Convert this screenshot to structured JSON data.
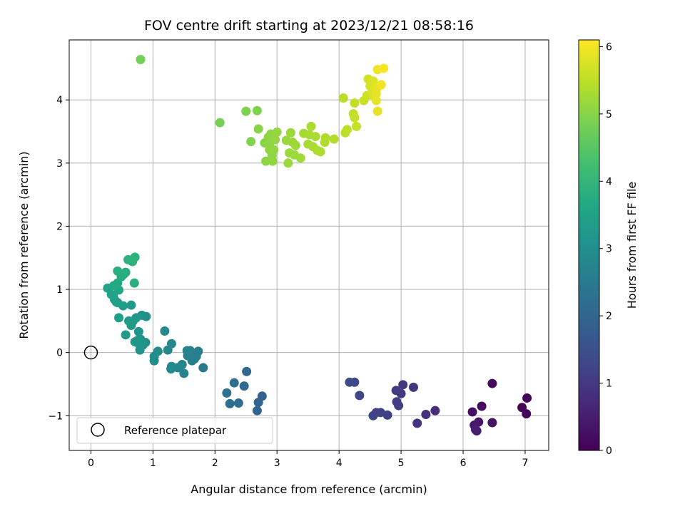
{
  "chart_data": {
    "type": "scatter",
    "title": "FOV centre drift starting at 2023/12/21 08:58:16",
    "xlabel": "Angular distance from reference (arcmin)",
    "ylabel": "Rotation from reference (arcmin)",
    "xlim": [
      -0.35,
      7.38
    ],
    "ylim": [
      -1.55,
      4.95
    ],
    "xticks": [
      "0",
      "1",
      "2",
      "3",
      "4",
      "5",
      "6",
      "7"
    ],
    "yticks": [
      "−1",
      "0",
      "1",
      "2",
      "3",
      "4"
    ],
    "grid": true,
    "legend": {
      "placement": "lower-left",
      "label": "Reference platepar"
    },
    "reference_point": {
      "x": 0,
      "y": 0
    },
    "colorbar": {
      "label": "Hours from first FF file",
      "range": [
        0,
        6.1
      ],
      "ticks": [
        "0",
        "1",
        "2",
        "3",
        "4",
        "5",
        "6"
      ],
      "colormap": "viridis"
    },
    "points": [
      {
        "x": 7.03,
        "y": -0.72,
        "t": 0.05
      },
      {
        "x": 6.95,
        "y": -0.87,
        "t": 0.08
      },
      {
        "x": 7.02,
        "y": -0.97,
        "t": 0.1
      },
      {
        "x": 6.47,
        "y": -0.49,
        "t": 0.15
      },
      {
        "x": 6.3,
        "y": -0.85,
        "t": 0.2
      },
      {
        "x": 6.15,
        "y": -0.94,
        "t": 0.25
      },
      {
        "x": 6.47,
        "y": -1.11,
        "t": 0.3
      },
      {
        "x": 6.25,
        "y": -1.1,
        "t": 0.35
      },
      {
        "x": 6.18,
        "y": -1.15,
        "t": 0.4
      },
      {
        "x": 6.22,
        "y": -1.24,
        "t": 0.45
      },
      {
        "x": 6.2,
        "y": -1.22,
        "t": 0.5
      },
      {
        "x": 5.55,
        "y": -0.92,
        "t": 0.8
      },
      {
        "x": 5.4,
        "y": -0.98,
        "t": 0.85
      },
      {
        "x": 5.26,
        "y": -1.12,
        "t": 0.9
      },
      {
        "x": 5.2,
        "y": -0.55,
        "t": 0.95
      },
      {
        "x": 5.03,
        "y": -0.51,
        "t": 1.0
      },
      {
        "x": 5.0,
        "y": -0.65,
        "t": 1.02
      },
      {
        "x": 4.92,
        "y": -0.6,
        "t": 1.05
      },
      {
        "x": 4.93,
        "y": -0.78,
        "t": 1.08
      },
      {
        "x": 4.96,
        "y": -0.84,
        "t": 1.1
      },
      {
        "x": 4.78,
        "y": -0.99,
        "t": 1.15
      },
      {
        "x": 4.67,
        "y": -0.95,
        "t": 1.18
      },
      {
        "x": 4.6,
        "y": -0.95,
        "t": 1.2
      },
      {
        "x": 4.55,
        "y": -1.0,
        "t": 1.25
      },
      {
        "x": 4.33,
        "y": -0.68,
        "t": 1.3
      },
      {
        "x": 4.25,
        "y": -0.47,
        "t": 1.35
      },
      {
        "x": 4.17,
        "y": -0.47,
        "t": 1.38
      },
      {
        "x": 2.76,
        "y": -0.69,
        "t": 1.9
      },
      {
        "x": 2.7,
        "y": -0.79,
        "t": 1.95
      },
      {
        "x": 2.68,
        "y": -0.92,
        "t": 2.0
      },
      {
        "x": 2.51,
        "y": -0.3,
        "t": 2.05
      },
      {
        "x": 2.47,
        "y": -0.53,
        "t": 2.1
      },
      {
        "x": 2.38,
        "y": -0.8,
        "t": 2.15
      },
      {
        "x": 2.31,
        "y": -0.48,
        "t": 2.2
      },
      {
        "x": 2.24,
        "y": -0.81,
        "t": 2.25
      },
      {
        "x": 2.19,
        "y": -0.64,
        "t": 2.3
      },
      {
        "x": 1.81,
        "y": -0.24,
        "t": 2.5
      },
      {
        "x": 1.73,
        "y": 0.02,
        "t": 2.55
      },
      {
        "x": 1.7,
        "y": -0.06,
        "t": 2.58
      },
      {
        "x": 1.67,
        "y": -0.1,
        "t": 2.6
      },
      {
        "x": 1.63,
        "y": -0.13,
        "t": 2.62
      },
      {
        "x": 1.6,
        "y": 0.03,
        "t": 2.65
      },
      {
        "x": 1.56,
        "y": -0.05,
        "t": 2.68
      },
      {
        "x": 1.55,
        "y": 0.03,
        "t": 2.7
      },
      {
        "x": 1.5,
        "y": -0.33,
        "t": 2.72
      },
      {
        "x": 1.47,
        "y": -0.19,
        "t": 2.75
      },
      {
        "x": 1.4,
        "y": -0.24,
        "t": 2.78
      },
      {
        "x": 1.3,
        "y": 0.14,
        "t": 2.8
      },
      {
        "x": 1.3,
        "y": -0.22,
        "t": 2.82
      },
      {
        "x": 1.29,
        "y": -0.26,
        "t": 2.84
      },
      {
        "x": 1.24,
        "y": 0.04,
        "t": 2.86
      },
      {
        "x": 1.19,
        "y": 0.34,
        "t": 2.88
      },
      {
        "x": 1.08,
        "y": 0.02,
        "t": 2.9
      },
      {
        "x": 1.02,
        "y": -0.06,
        "t": 2.92
      },
      {
        "x": 1.02,
        "y": -0.13,
        "t": 2.94
      },
      {
        "x": 0.89,
        "y": 0.57,
        "t": 3.0
      },
      {
        "x": 0.88,
        "y": 0.16,
        "t": 3.02
      },
      {
        "x": 0.82,
        "y": 0.59,
        "t": 3.05
      },
      {
        "x": 0.84,
        "y": 0.12,
        "t": 3.08
      },
      {
        "x": 0.8,
        "y": 0.21,
        "t": 3.1
      },
      {
        "x": 0.79,
        "y": 0.04,
        "t": 3.12
      },
      {
        "x": 0.78,
        "y": 0.13,
        "t": 3.14
      },
      {
        "x": 0.77,
        "y": 0.33,
        "t": 3.16
      },
      {
        "x": 0.75,
        "y": 0.19,
        "t": 3.18
      },
      {
        "x": 0.73,
        "y": 0.55,
        "t": 3.2
      },
      {
        "x": 0.71,
        "y": 0.17,
        "t": 3.22
      },
      {
        "x": 0.68,
        "y": 0.5,
        "t": 3.24
      },
      {
        "x": 0.65,
        "y": 0.43,
        "t": 3.26
      },
      {
        "x": 0.65,
        "y": 0.75,
        "t": 3.28
      },
      {
        "x": 0.61,
        "y": 0.5,
        "t": 3.3
      },
      {
        "x": 0.56,
        "y": 0.28,
        "t": 3.32
      },
      {
        "x": 0.52,
        "y": 0.74,
        "t": 3.35
      },
      {
        "x": 0.45,
        "y": 0.55,
        "t": 3.38
      },
      {
        "x": 0.43,
        "y": 0.79,
        "t": 3.4
      },
      {
        "x": 0.41,
        "y": 0.8,
        "t": 3.42
      },
      {
        "x": 0.38,
        "y": 0.84,
        "t": 3.45
      },
      {
        "x": 0.36,
        "y": 0.9,
        "t": 3.48
      },
      {
        "x": 0.33,
        "y": 0.92,
        "t": 3.5
      },
      {
        "x": 0.27,
        "y": 1.02,
        "t": 3.55
      },
      {
        "x": 0.45,
        "y": 0.99,
        "t": 3.6
      },
      {
        "x": 0.37,
        "y": 1.06,
        "t": 3.65
      },
      {
        "x": 0.43,
        "y": 1.1,
        "t": 3.7
      },
      {
        "x": 0.49,
        "y": 1.2,
        "t": 3.72
      },
      {
        "x": 0.53,
        "y": 1.24,
        "t": 3.75
      },
      {
        "x": 0.56,
        "y": 1.27,
        "t": 3.78
      },
      {
        "x": 0.43,
        "y": 1.29,
        "t": 3.8
      },
      {
        "x": 0.7,
        "y": 1.1,
        "t": 3.82
      },
      {
        "x": 0.6,
        "y": 1.47,
        "t": 3.85
      },
      {
        "x": 0.67,
        "y": 1.44,
        "t": 3.88
      },
      {
        "x": 0.71,
        "y": 1.51,
        "t": 3.9
      },
      {
        "x": 0.8,
        "y": 4.64,
        "t": 4.8
      },
      {
        "x": 2.08,
        "y": 3.64,
        "t": 4.85
      },
      {
        "x": 2.5,
        "y": 3.82,
        "t": 4.9
      },
      {
        "x": 2.68,
        "y": 3.83,
        "t": 4.92
      },
      {
        "x": 2.58,
        "y": 3.34,
        "t": 4.95
      },
      {
        "x": 2.7,
        "y": 3.54,
        "t": 5.0
      },
      {
        "x": 2.8,
        "y": 3.32,
        "t": 5.02
      },
      {
        "x": 2.82,
        "y": 3.03,
        "t": 5.04
      },
      {
        "x": 2.86,
        "y": 3.41,
        "t": 5.05
      },
      {
        "x": 2.88,
        "y": 3.21,
        "t": 5.06
      },
      {
        "x": 2.88,
        "y": 3.3,
        "t": 5.07
      },
      {
        "x": 2.9,
        "y": 3.46,
        "t": 5.08
      },
      {
        "x": 2.92,
        "y": 3.12,
        "t": 5.09
      },
      {
        "x": 2.93,
        "y": 3.03,
        "t": 5.1
      },
      {
        "x": 2.95,
        "y": 3.21,
        "t": 5.11
      },
      {
        "x": 2.97,
        "y": 3.37,
        "t": 5.12
      },
      {
        "x": 3.0,
        "y": 3.49,
        "t": 5.13
      },
      {
        "x": 3.15,
        "y": 3.36,
        "t": 5.15
      },
      {
        "x": 3.18,
        "y": 3.0,
        "t": 5.17
      },
      {
        "x": 3.2,
        "y": 3.16,
        "t": 5.18
      },
      {
        "x": 3.22,
        "y": 3.48,
        "t": 5.19
      },
      {
        "x": 3.25,
        "y": 3.33,
        "t": 5.2
      },
      {
        "x": 3.28,
        "y": 3.13,
        "t": 5.21
      },
      {
        "x": 3.3,
        "y": 3.28,
        "t": 5.22
      },
      {
        "x": 3.38,
        "y": 3.08,
        "t": 5.25
      },
      {
        "x": 3.43,
        "y": 3.47,
        "t": 5.27
      },
      {
        "x": 3.5,
        "y": 3.3,
        "t": 5.28
      },
      {
        "x": 3.52,
        "y": 3.45,
        "t": 5.3
      },
      {
        "x": 3.55,
        "y": 3.58,
        "t": 5.31
      },
      {
        "x": 3.58,
        "y": 3.26,
        "t": 5.32
      },
      {
        "x": 3.62,
        "y": 3.42,
        "t": 5.33
      },
      {
        "x": 3.65,
        "y": 3.2,
        "t": 5.34
      },
      {
        "x": 3.7,
        "y": 3.18,
        "t": 5.35
      },
      {
        "x": 3.77,
        "y": 3.33,
        "t": 5.37
      },
      {
        "x": 3.78,
        "y": 3.4,
        "t": 5.38
      },
      {
        "x": 3.92,
        "y": 3.38,
        "t": 5.4
      },
      {
        "x": 4.07,
        "y": 4.03,
        "t": 5.45
      },
      {
        "x": 4.1,
        "y": 3.48,
        "t": 5.47
      },
      {
        "x": 4.13,
        "y": 3.53,
        "t": 5.5
      },
      {
        "x": 4.23,
        "y": 3.78,
        "t": 5.52
      },
      {
        "x": 4.25,
        "y": 3.95,
        "t": 5.55
      },
      {
        "x": 4.25,
        "y": 3.72,
        "t": 5.57
      },
      {
        "x": 4.28,
        "y": 3.58,
        "t": 5.58
      },
      {
        "x": 4.4,
        "y": 3.99,
        "t": 5.6
      },
      {
        "x": 4.45,
        "y": 4.07,
        "t": 5.65
      },
      {
        "x": 4.47,
        "y": 4.33,
        "t": 5.7
      },
      {
        "x": 4.5,
        "y": 4.22,
        "t": 5.72
      },
      {
        "x": 4.53,
        "y": 4.12,
        "t": 5.75
      },
      {
        "x": 4.55,
        "y": 4.3,
        "t": 5.78
      },
      {
        "x": 4.57,
        "y": 4.05,
        "t": 5.8
      },
      {
        "x": 4.58,
        "y": 4.17,
        "t": 5.82
      },
      {
        "x": 4.6,
        "y": 3.99,
        "t": 5.85
      },
      {
        "x": 4.6,
        "y": 4.1,
        "t": 5.87
      },
      {
        "x": 4.62,
        "y": 3.82,
        "t": 5.88
      },
      {
        "x": 4.62,
        "y": 4.2,
        "t": 5.9
      },
      {
        "x": 4.62,
        "y": 4.48,
        "t": 5.95
      },
      {
        "x": 4.68,
        "y": 4.24,
        "t": 5.98
      },
      {
        "x": 4.72,
        "y": 4.5,
        "t": 6.05
      }
    ]
  }
}
